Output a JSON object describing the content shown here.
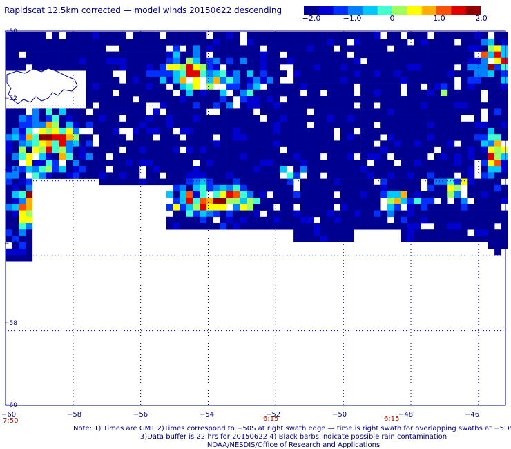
{
  "title": "Rapidscat 12.5km corrected — model winds 20150622 descending",
  "colorbar": {
    "ticks": [
      "−2.0",
      "−1.0",
      "0",
      "1.0",
      "2.0"
    ],
    "colors": [
      "#000090",
      "#0000d0",
      "#0030ff",
      "#0080ff",
      "#00c8ff",
      "#40ffd0",
      "#a0ff60",
      "#ffff00",
      "#ffb000",
      "#ff5000",
      "#e00000",
      "#900000"
    ]
  },
  "map": {
    "lat_labels": [
      "−50",
      "−52",
      "−54",
      "−56",
      "−58",
      "−60"
    ],
    "lon_labels": [
      "−60",
      "−58",
      "−56",
      "−54",
      "−52",
      "−50",
      "−48",
      "−46"
    ],
    "time_labels": [
      "7:50",
      "6:15",
      "6:15"
    ],
    "grid_lats": [
      -50,
      -52,
      -54,
      -56,
      -58,
      -60
    ],
    "grid_lons": [
      -58,
      -56,
      -54,
      -52,
      -50,
      -48,
      -46
    ],
    "lat_range": [
      -60,
      -50
    ],
    "lon_range": [
      -60,
      -45.2
    ]
  },
  "notes": {
    "line1": "Note: 1) Times are GMT 2)Times correspond to −50S at right swath edge — time is right swath for overlapping swaths at −5DS",
    "line2": "3)Data buffer is 22 hrs for 20150622 4) Black barbs indicate possible rain contamination",
    "line3": "NOAA/NESDIS/Office of Research and Applications"
  }
}
